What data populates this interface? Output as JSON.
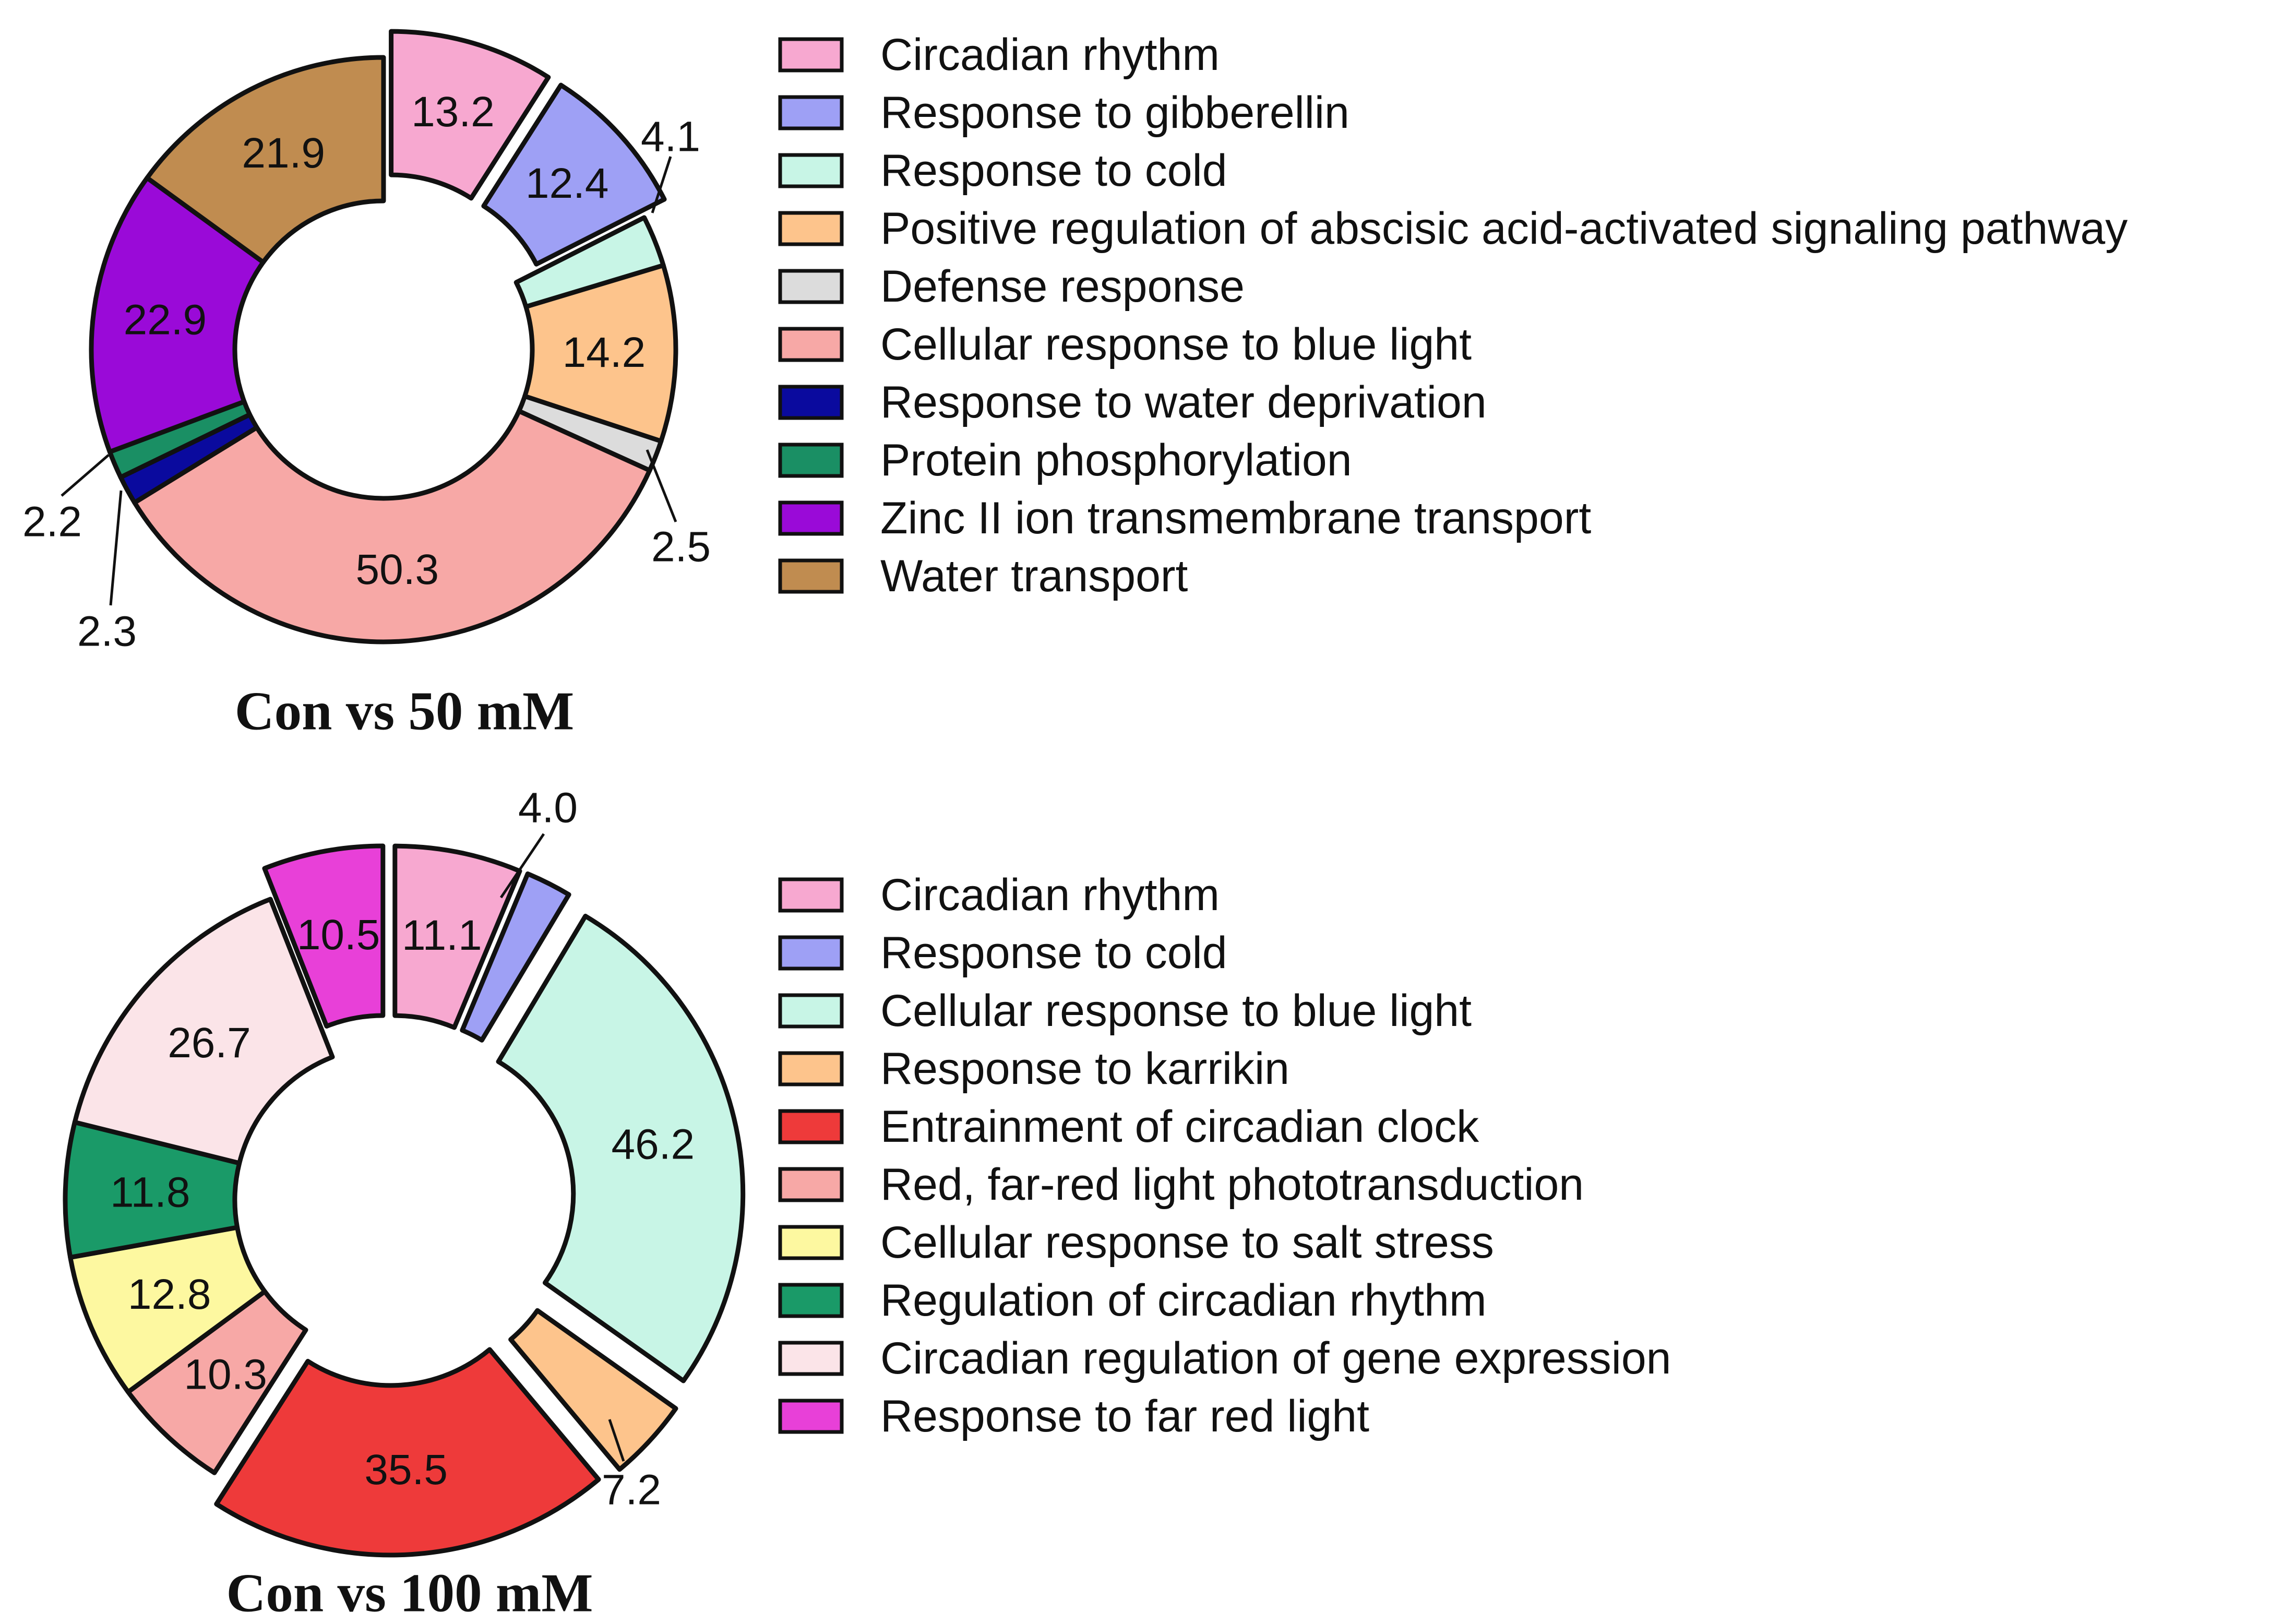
{
  "chart_data": [
    {
      "type": "pie",
      "title": "Con vs 50 mM",
      "categories": [
        "Circadian rhythm",
        "Response to gibberellin",
        "Response to cold",
        "Positive regulation of abscisic acid-activated signaling pathway",
        "Defense response",
        "Cellular response to blue light",
        "Response to water deprivation",
        "Protein phosphorylation",
        "Zinc II ion transmembrane transport",
        "Water transport"
      ],
      "values": [
        13.2,
        12.4,
        4.1,
        14.2,
        2.5,
        50.3,
        2.3,
        2.2,
        22.9,
        21.9
      ],
      "value_labels": [
        "13.2",
        "12.4",
        "4.1",
        "14.2",
        "2.5",
        "50.3",
        "2.3",
        "2.2",
        "22.9",
        "21.9"
      ],
      "colors": [
        "#f7a8d0",
        "#9ea0f5",
        "#c8f5e6",
        "#fdc48c",
        "#dcdcdc",
        "#f7a8a6",
        "#0a0a9e",
        "#1a8f64",
        "#9a0ad8",
        "#c08c50"
      ],
      "exploded": [
        true,
        true,
        false,
        false,
        false,
        false,
        false,
        false,
        false,
        false
      ],
      "legend_position": "right"
    },
    {
      "type": "pie",
      "title": "Con vs 100 mM",
      "categories": [
        "Circadian rhythm",
        "Response to cold",
        "Cellular response to blue light",
        "Response to karrikin",
        "Entrainment of circadian clock",
        "Red, far-red light phototransduction",
        "Cellular response to salt stress",
        "Regulation of circadian rhythm",
        "Circadian regulation of gene expression",
        "Response to far red light"
      ],
      "values": [
        11.1,
        4.0,
        46.2,
        7.2,
        35.5,
        10.3,
        12.8,
        11.8,
        26.7,
        10.5
      ],
      "value_labels": [
        "11.1",
        "4.0",
        "46.2",
        "7.2",
        "35.5",
        "10.3",
        "12.8",
        "11.8",
        "26.7",
        "10.5"
      ],
      "colors": [
        "#f7a8d0",
        "#9ea0f5",
        "#c8f5e6",
        "#fdc48c",
        "#ee3a3a",
        "#f7a8a6",
        "#fdf8a0",
        "#1a9a68",
        "#fbe4e8",
        "#e840d8"
      ],
      "exploded": [
        true,
        true,
        true,
        true,
        true,
        false,
        false,
        false,
        false,
        true
      ],
      "legend_position": "right"
    }
  ]
}
